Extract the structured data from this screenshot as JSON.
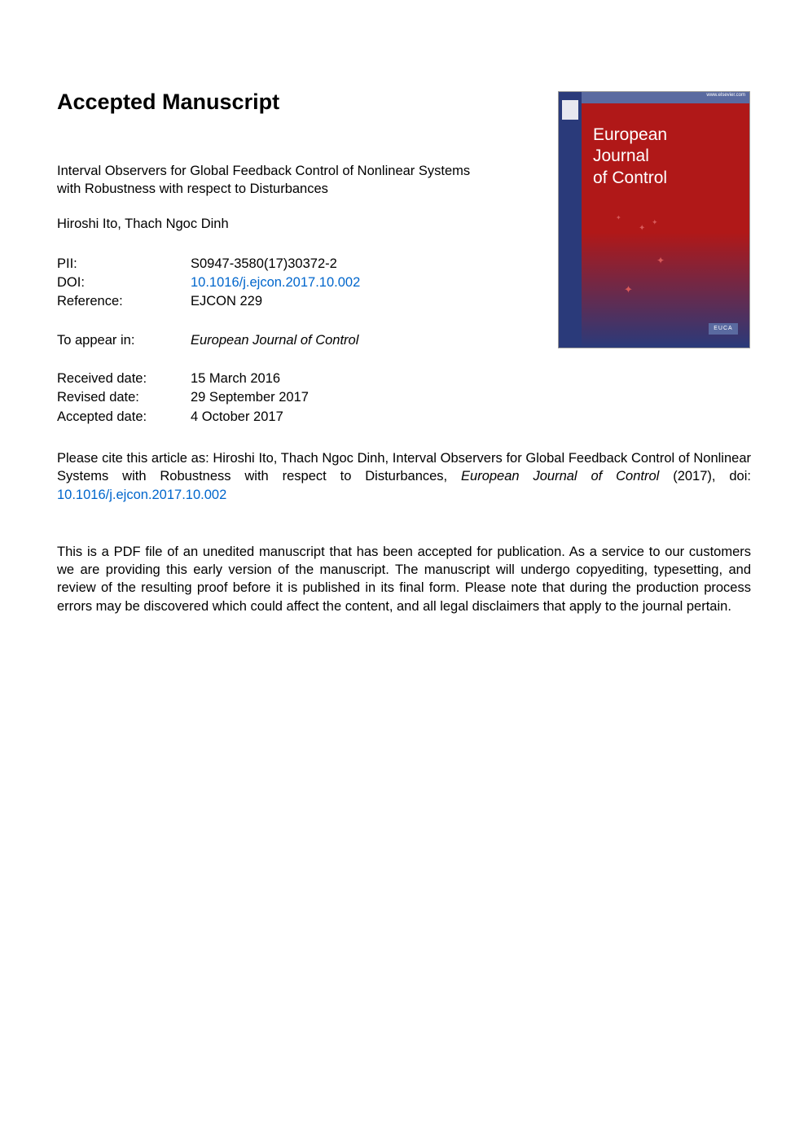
{
  "heading": "Accepted Manuscript",
  "article": {
    "title": "Interval Observers for Global Feedback Control of Nonlinear Systems with Robustness with respect to Disturbances",
    "authors": "Hiroshi Ito, Thach Ngoc Dinh"
  },
  "meta": {
    "pii_label": "PII:",
    "pii_value": "S0947-3580(17)30372-2",
    "doi_label": "DOI:",
    "doi_value": "10.1016/j.ejcon.2017.10.002",
    "ref_label": "Reference:",
    "ref_value": "EJCON 229"
  },
  "appear": {
    "label": "To appear in:",
    "value": "European Journal of Control"
  },
  "dates": {
    "received_label": "Received date:",
    "received_value": "15 March 2016",
    "revised_label": "Revised date:",
    "revised_value": "29 September 2017",
    "accepted_label": "Accepted date:",
    "accepted_value": "4 October 2017"
  },
  "cite": {
    "prefix": "Please cite this article as: Hiroshi Ito, Thach Ngoc Dinh, Interval Observers for Global Feedback Control of Nonlinear Systems with Robustness with respect to Disturbances, ",
    "journal": "European Journal of Control",
    "year": " (2017), doi: ",
    "doi": "10.1016/j.ejcon.2017.10.002"
  },
  "disclaimer": "This is a PDF file of an unedited manuscript that has been accepted for publication. As a service to our customers we are providing this early version of the manuscript. The manuscript will undergo copyediting, typesetting, and review of the resulting proof before it is published in its final form. Please note that during the production process errors may be discovered which could affect the content, and all legal disclaimers that apply to the journal pertain.",
  "cover": {
    "journal_line1": "European",
    "journal_line2": "Journal",
    "journal_line3": "of Control",
    "site": "www.elsevier.com",
    "badge": "EUCA",
    "colors": {
      "spine": "#2a3a7a",
      "top_strip": "#5a6aa0",
      "main_red": "#b01818",
      "main_blue": "#2a3a7a",
      "star": "#d85a5a",
      "badge_bg": "#5a6aa0",
      "title_text": "#ffffff"
    }
  },
  "colors": {
    "link": "#0066cc",
    "text": "#000000",
    "background": "#ffffff"
  }
}
